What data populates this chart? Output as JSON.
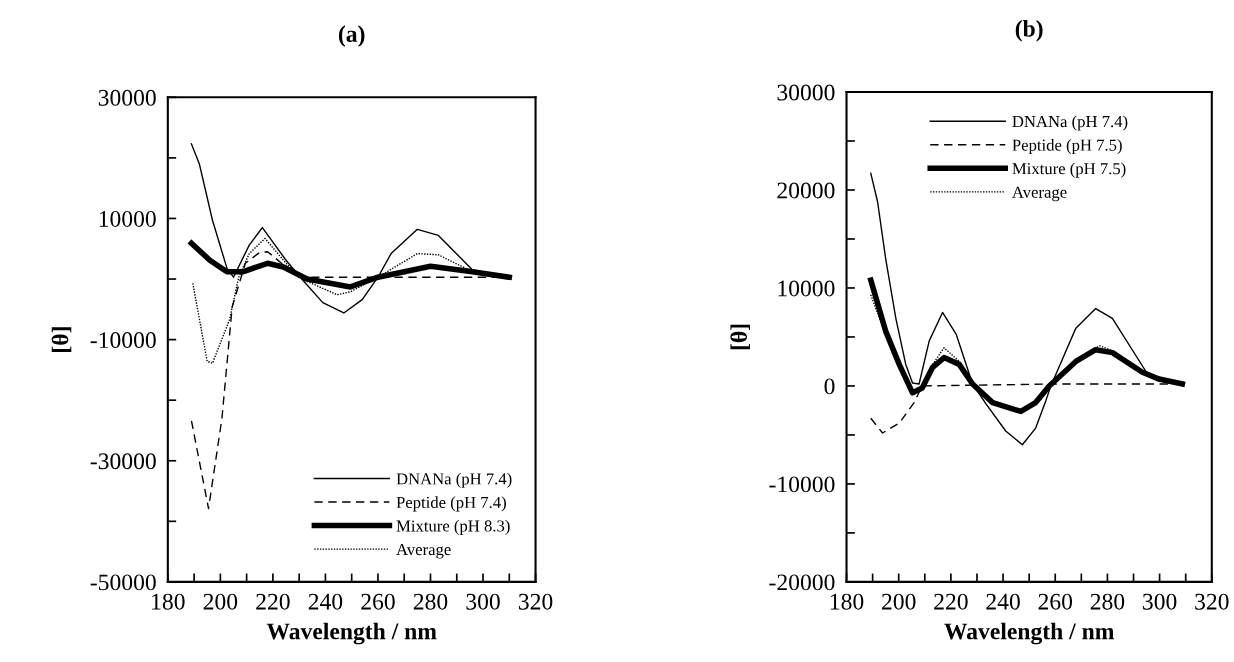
{
  "chart_data": [
    {
      "type": "line",
      "title": "(a)",
      "xlabel": "Wavelength / nm",
      "ylabel": "[θ]",
      "xlim": [
        180,
        320
      ],
      "ylim": [
        -50000,
        30000
      ],
      "xticks": [
        180,
        {
          "value": 190,
          "label": null
        },
        200,
        {
          "value": 210,
          "label": null
        },
        220,
        {
          "value": 230,
          "label": null
        },
        240,
        {
          "value": 250,
          "label": null
        },
        260,
        {
          "value": 270,
          "label": null
        },
        280,
        {
          "value": 290,
          "label": null
        },
        300,
        {
          "value": 310,
          "label": null
        },
        320
      ],
      "yticks": [
        30000,
        {
          "value": 20000,
          "label": null
        },
        10000,
        {
          "value": 0,
          "label": null
        },
        -10000,
        {
          "value": -20000,
          "label": null
        },
        -30000,
        {
          "value": -40000,
          "label": null
        },
        -50000
      ],
      "legend": "bottom right",
      "grid": false,
      "marker": "none",
      "series": [
        {
          "name": "DNANa (pH 7.4)",
          "color": "#000000",
          "line_style": "solid",
          "x": [
            189,
            192,
            197,
            202.5,
            205,
            211,
            216,
            225,
            231,
            239,
            247,
            254,
            260,
            265,
            275,
            283,
            296,
            310
          ],
          "values": [
            22300,
            19000,
            9700,
            1800,
            300,
            5600,
            8500,
            3100,
            0,
            -3900,
            -5600,
            -3400,
            300,
            4200,
            8200,
            7200,
            1500,
            300
          ]
        },
        {
          "name": "Peptide (pH 7.4)",
          "color": "#000000",
          "line_style": "dashed",
          "x": [
            189,
            195.5,
            200.6,
            204.5,
            209.5,
            215,
            218,
            225,
            230,
            260,
            310
          ],
          "values": [
            -23400,
            -37900,
            -23000,
            -4600,
            2600,
            4400,
            4500,
            2000,
            300,
            300,
            300
          ]
        },
        {
          "name": "Mixture (pH 8.3)",
          "color": "#000000",
          "line_style": "solid",
          "x": [
            189,
            196,
            202.5,
            208.5,
            218,
            224,
            233,
            249.5,
            260,
            280,
            296,
            310
          ],
          "values": [
            5900,
            3100,
            1200,
            1200,
            2600,
            2000,
            0,
            -1300,
            300,
            2100,
            1200,
            300
          ]
        },
        {
          "name": "Average",
          "color": "#000000",
          "line_style": "dotted",
          "x": [
            189.5,
            195,
            197,
            203.5,
            207,
            211,
            217,
            225,
            231,
            244.5,
            249.5,
            260,
            275,
            283,
            296,
            310
          ],
          "values": [
            -700,
            -13600,
            -13900,
            -6700,
            300,
            4200,
            6700,
            2600,
            0,
            -2600,
            -2100,
            300,
            4200,
            4000,
            1200,
            300
          ]
        }
      ]
    },
    {
      "type": "line",
      "title": "(b)",
      "xlabel": "Wavelength / nm",
      "ylabel": "[θ]",
      "xlim": [
        180,
        320
      ],
      "ylim": [
        -20000,
        30000
      ],
      "xticks": [
        180,
        {
          "value": 190,
          "label": null
        },
        200,
        {
          "value": 210,
          "label": null
        },
        220,
        {
          "value": 230,
          "label": null
        },
        240,
        {
          "value": 250,
          "label": null
        },
        260,
        {
          "value": 270,
          "label": null
        },
        280,
        {
          "value": 290,
          "label": null
        },
        300,
        {
          "value": 310,
          "label": null
        },
        320
      ],
      "yticks": [
        30000,
        {
          "value": 25000,
          "label": null
        },
        20000,
        {
          "value": 15000,
          "label": null
        },
        10000,
        {
          "value": 5000,
          "label": null
        },
        0,
        {
          "value": -5000,
          "label": null
        },
        -10000,
        {
          "value": -15000,
          "label": null
        },
        -20000
      ],
      "legend": "top",
      "grid": false,
      "marker": "none",
      "series": [
        {
          "name": "DNANa (pH 7.4)",
          "color": "#000000",
          "line_style": "solid",
          "x": [
            189.3,
            191.9,
            195,
            198.9,
            202.7,
            205.3,
            207.8,
            211.7,
            216.8,
            222,
            228.3,
            233.4,
            241,
            247.4,
            252.5,
            256.4,
            258.3,
            267.9,
            275.5,
            281.9,
            294.7,
            299.8,
            308.7
          ],
          "values": [
            21700,
            18800,
            13000,
            6900,
            2200,
            300,
            200,
            4600,
            7500,
            5300,
            200,
            -1800,
            -4600,
            -6000,
            -4300,
            -1500,
            0,
            5900,
            7900,
            6900,
            1500,
            500,
            200
          ]
        },
        {
          "name": "Peptide (pH 7.5)",
          "color": "#000000",
          "line_style": "dashed",
          "x": [
            189.3,
            193.8,
            200.2,
            205.9,
            209,
            260,
            308.7
          ],
          "values": [
            -3300,
            -4800,
            -3800,
            -1700,
            0,
            200,
            200
          ]
        },
        {
          "name": "Mixture (pH 7.5)",
          "color": "#000000",
          "line_style": "solid",
          "x": [
            189.3,
            195,
            200.2,
            205.3,
            209,
            213,
            217.4,
            223.2,
            228.3,
            236,
            246.8,
            252.5,
            257.7,
            267.9,
            275.5,
            281.9,
            293.4,
            299.8,
            308.7
          ],
          "values": [
            10800,
            5600,
            2200,
            -700,
            -200,
            1900,
            2900,
            2200,
            200,
            -1700,
            -2600,
            -1700,
            0,
            2500,
            3700,
            3400,
            1400,
            700,
            200
          ]
        },
        {
          "name": "Average",
          "color": "#000000",
          "line_style": "dotted",
          "x": [
            189.3,
            195,
            200.2,
            205.3,
            209,
            213,
            217.4,
            223.2,
            228.3,
            236,
            246.8,
            252.5,
            257.7,
            267.9,
            277,
            281.9,
            293.4,
            299.8,
            308.7
          ],
          "values": [
            9300,
            5200,
            2000,
            -600,
            -200,
            2200,
            3900,
            2500,
            300,
            -1600,
            -2400,
            -1600,
            0,
            2700,
            4100,
            3600,
            1400,
            700,
            200
          ]
        }
      ]
    }
  ]
}
